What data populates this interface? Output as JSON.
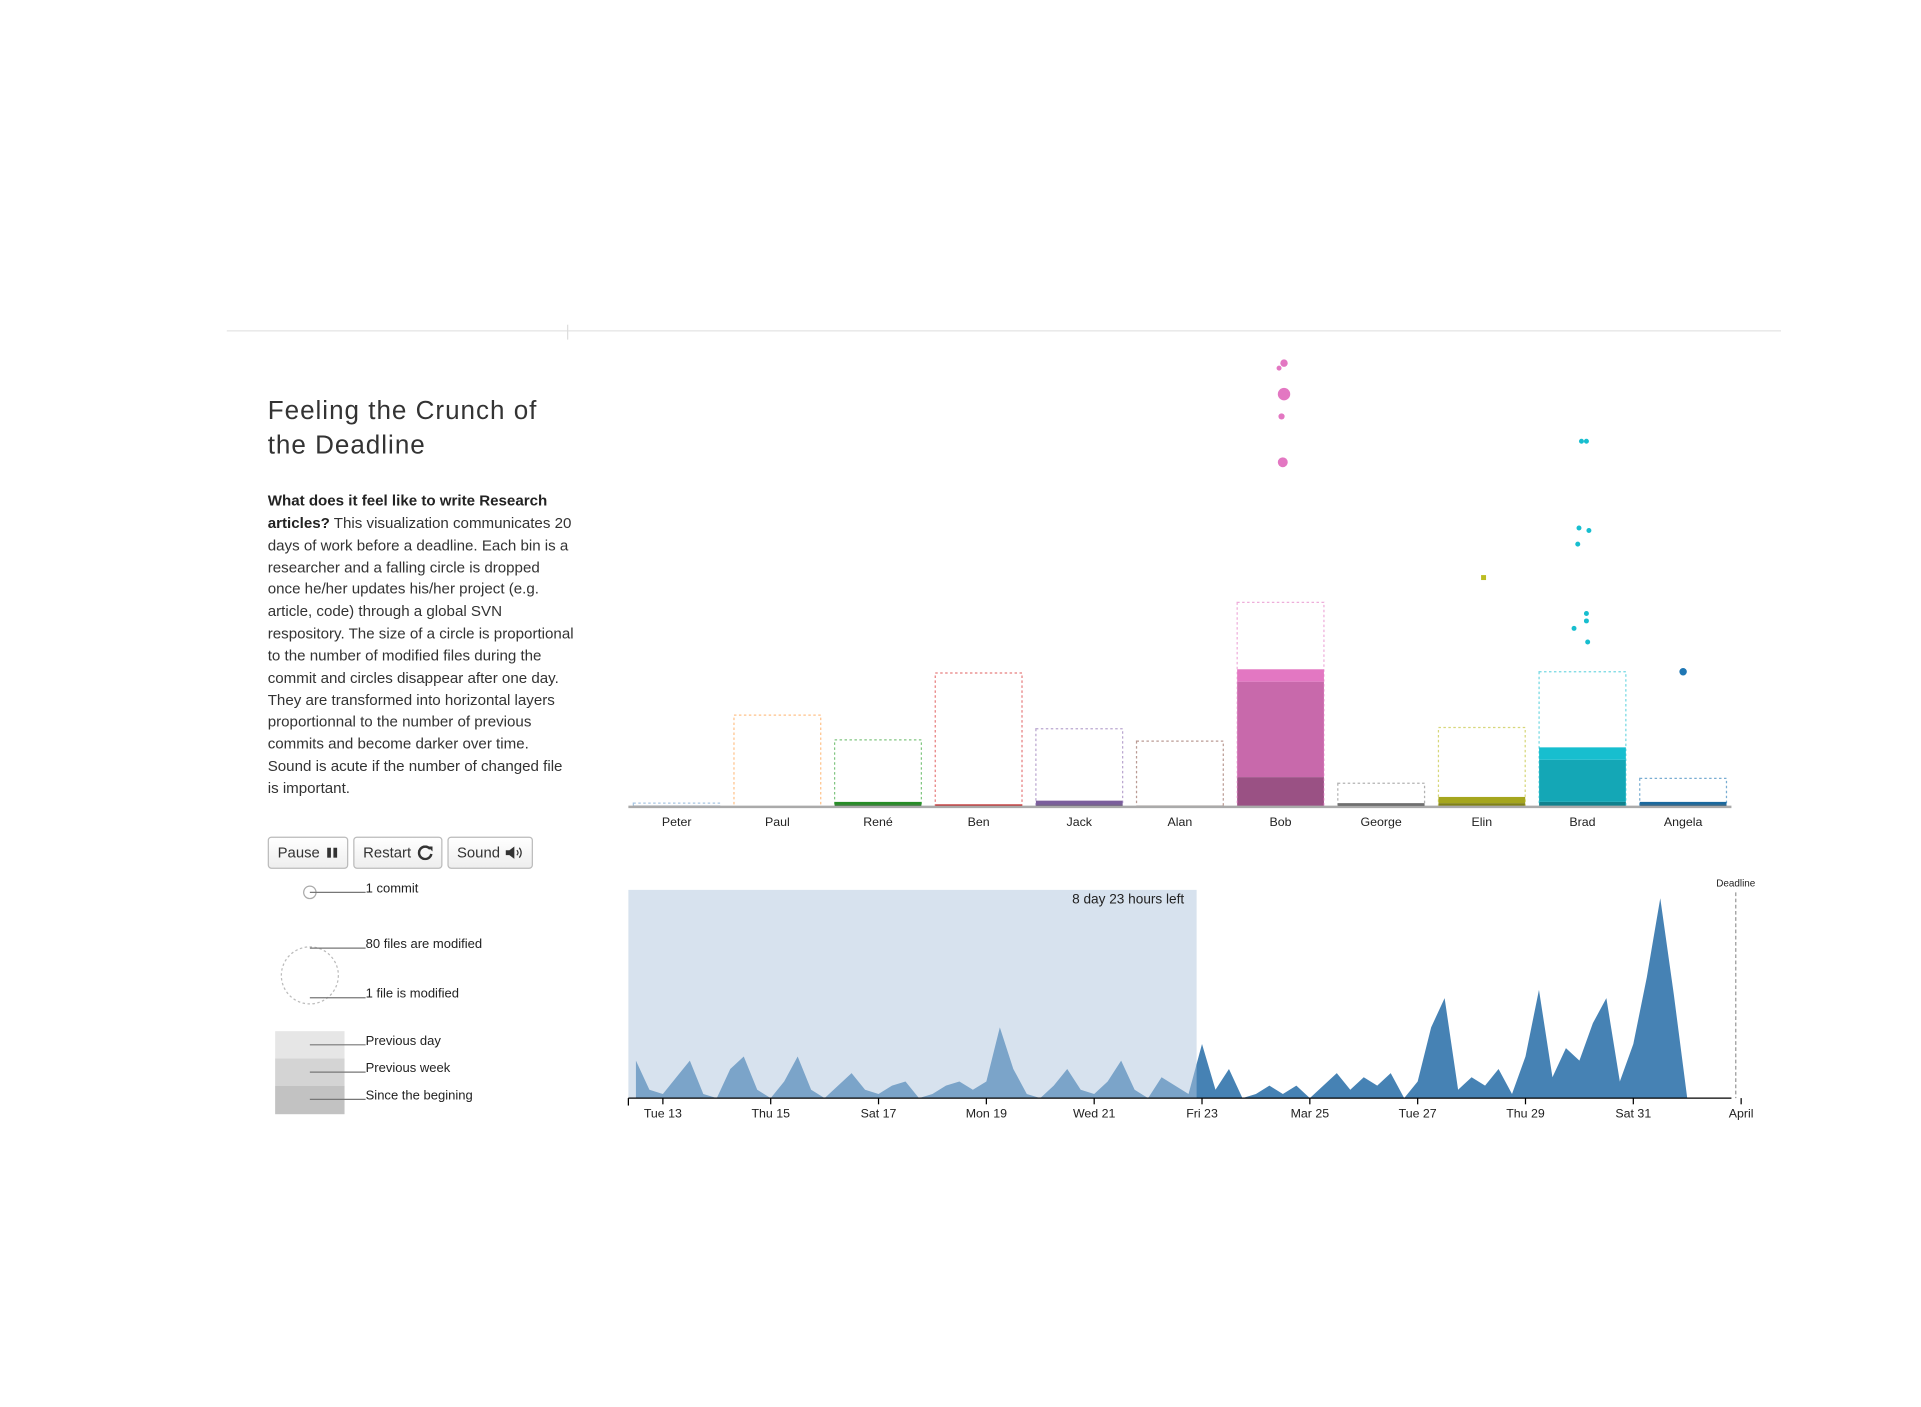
{
  "title": "Feeling the Crunch of the Deadline",
  "description": {
    "lead": "What does it feel like to write Research articles?",
    "body": "This visualization communicates 20 days of work before a deadline. Each bin is a researcher and a falling circle is dropped once he/her updates his/her project (e.g. article, code) through a global SVN respository. The size of a circle is proportional to the number of modified files during the commit and circles disappear after one day. They are transformed into horizontal layers proportionnal to the number of previous commits and become darker over time. Sound is acute if the number of changed file is important."
  },
  "buttons": [
    "Pause",
    "Restart",
    "Sound"
  ],
  "legend": {
    "commit": "1 commit",
    "files_max": "80 files are modified",
    "files_min": "1 file is modified"
  },
  "chart_data": [
    {
      "type": "bins",
      "categories": [
        "Peter",
        "Paul",
        "René",
        "Ben",
        "Jack",
        "Alan",
        "Bob",
        "George",
        "Elin",
        "Brad",
        "Angela"
      ],
      "colors": [
        "#6a9fcf",
        "#ff9a3c",
        "#2ca02c",
        "#d62728",
        "#8c6bb1",
        "#8c564b",
        "#e377c2",
        "#7f7f7f",
        "#bcbd22",
        "#17becf",
        "#1f77b4"
      ],
      "capacity": [
        3,
        74,
        54,
        108,
        63,
        53,
        165,
        19,
        64,
        109,
        23
      ],
      "series": [
        {
          "name": "Since the begining",
          "values": [
            1,
            0,
            2,
            1,
            2,
            1,
            24,
            2,
            3,
            4,
            2
          ]
        },
        {
          "name": "Previous week",
          "values": [
            0,
            0,
            2,
            1,
            3,
            0,
            77,
            1,
            5,
            34,
            2
          ]
        },
        {
          "name": "Previous day",
          "values": [
            0,
            0,
            0,
            0,
            0,
            0,
            10,
            0,
            0,
            10,
            0
          ]
        }
      ]
    },
    {
      "type": "area",
      "color": "#4682b4",
      "x": [
        12.5,
        12.75,
        13,
        13.25,
        13.5,
        13.75,
        14,
        14.25,
        14.5,
        14.75,
        15,
        15.25,
        15.5,
        15.75,
        16,
        16.25,
        16.5,
        16.75,
        17,
        17.25,
        17.5,
        17.75,
        18,
        18.25,
        18.5,
        18.75,
        19,
        19.25,
        19.5,
        19.75,
        20,
        20.25,
        20.5,
        20.75,
        21,
        21.25,
        21.5,
        21.75,
        22,
        22.25,
        22.5,
        22.75,
        23,
        23.25,
        23.5,
        23.75,
        24,
        24.25,
        24.5,
        24.75,
        25,
        25.25,
        25.5,
        25.75,
        26,
        26.25,
        26.5,
        26.75,
        27,
        27.25,
        27.5,
        27.75,
        28,
        28.25,
        28.5,
        28.75,
        29,
        29.25,
        29.5,
        29.75,
        30,
        30.25,
        30.5,
        30.75,
        31,
        31.25,
        31.5,
        31.75,
        32,
        32.25,
        32.5
      ],
      "values": [
        18,
        4,
        2,
        10,
        18,
        2,
        0,
        14,
        20,
        4,
        0,
        8,
        20,
        4,
        0,
        6,
        12,
        4,
        2,
        6,
        8,
        0,
        2,
        6,
        8,
        4,
        8,
        34,
        14,
        2,
        0,
        6,
        14,
        4,
        2,
        8,
        18,
        4,
        0,
        10,
        6,
        2,
        26,
        4,
        14,
        0,
        2,
        6,
        2,
        6,
        0,
        6,
        12,
        4,
        10,
        6,
        12,
        0,
        8,
        34,
        48,
        4,
        10,
        6,
        14,
        2,
        20,
        52,
        10,
        24,
        18,
        36,
        48,
        8,
        26,
        58,
        96,
        50,
        0,
        0,
        0
      ],
      "xlim": [
        12.36,
        32.82
      ],
      "ylim": [
        0,
        100
      ],
      "xticks": [
        {
          "value": 13,
          "label": "Tue 13"
        },
        {
          "value": 15,
          "label": "Thu 15"
        },
        {
          "value": 17,
          "label": "Sat 17"
        },
        {
          "value": 19,
          "label": "Mon 19"
        },
        {
          "value": 21,
          "label": "Wed 21"
        },
        {
          "value": 23,
          "label": "Fri 23"
        },
        {
          "value": 25,
          "label": "Mar 25"
        },
        {
          "value": 27,
          "label": "Tue 27"
        },
        {
          "value": 29,
          "label": "Thu 29"
        },
        {
          "value": 31,
          "label": "Sat 31"
        },
        {
          "value": 33,
          "label": "April"
        }
      ],
      "highlight": {
        "end": 22.9,
        "label": "8 day 23 hours left"
      },
      "deadline": {
        "value": 32.9,
        "label": "Deadline"
      }
    }
  ]
}
